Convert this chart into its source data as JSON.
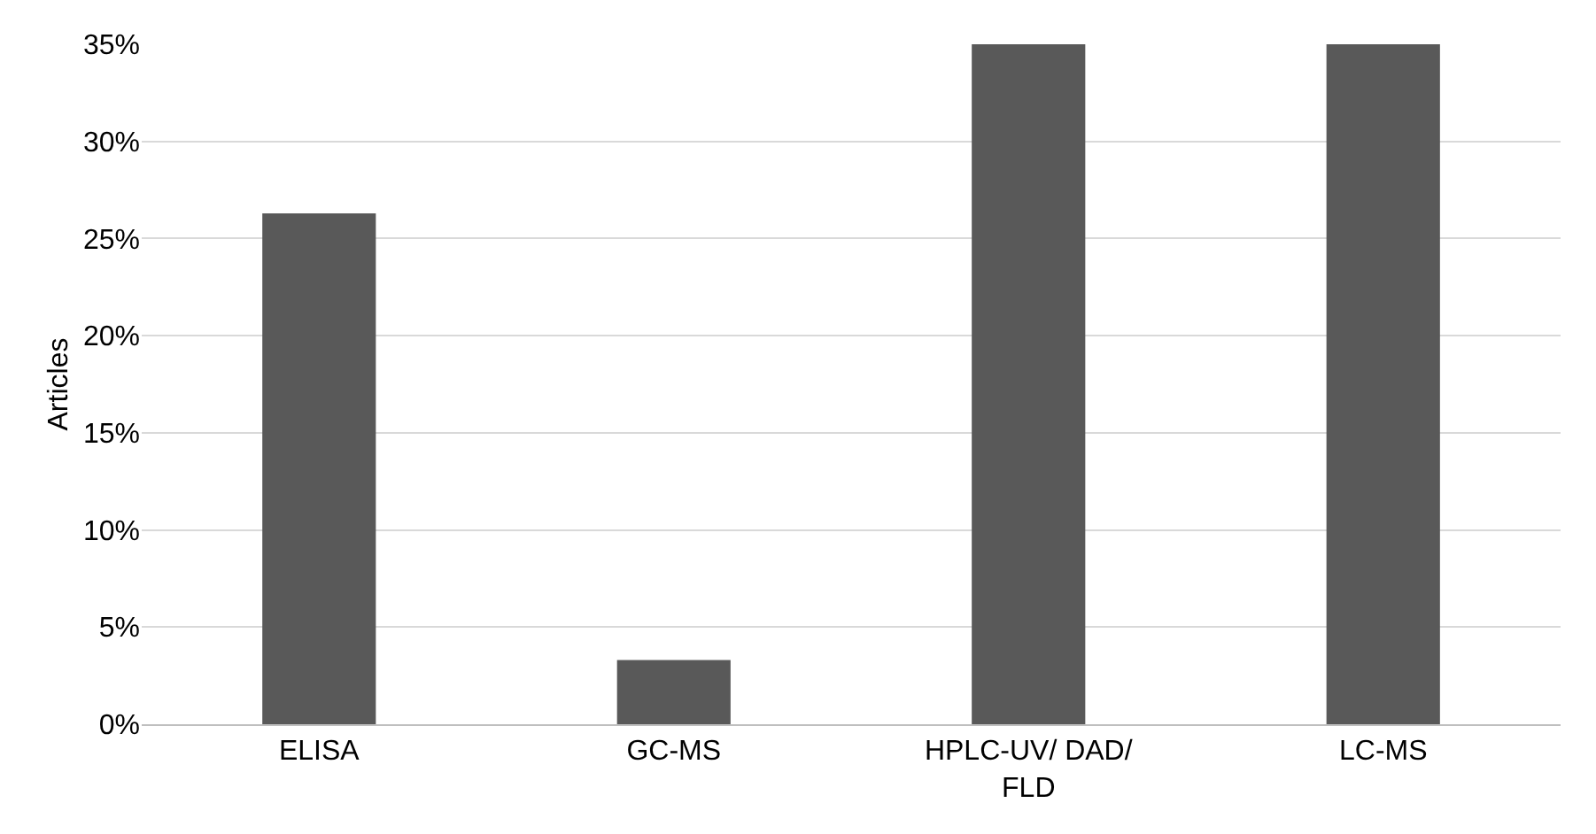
{
  "chart_data": {
    "type": "bar",
    "ylabel": "Articles",
    "categories": [
      "ELISA",
      "GC-MS",
      "HPLC-UV/ DAD/ FLD",
      "LC-MS"
    ],
    "values": [
      26.3,
      3.3,
      35,
      35
    ],
    "color": "#595959",
    "ylim": [
      0,
      35
    ],
    "yticks": [
      {
        "value": 0,
        "label": "0%"
      },
      {
        "value": 5,
        "label": "5%"
      },
      {
        "value": 10,
        "label": "10%"
      },
      {
        "value": 15,
        "label": "15%"
      },
      {
        "value": 20,
        "label": "20%"
      },
      {
        "value": 25,
        "label": "25%"
      },
      {
        "value": 30,
        "label": "30%"
      },
      {
        "value": 35,
        "label": "35%"
      }
    ],
    "grid": "y"
  }
}
